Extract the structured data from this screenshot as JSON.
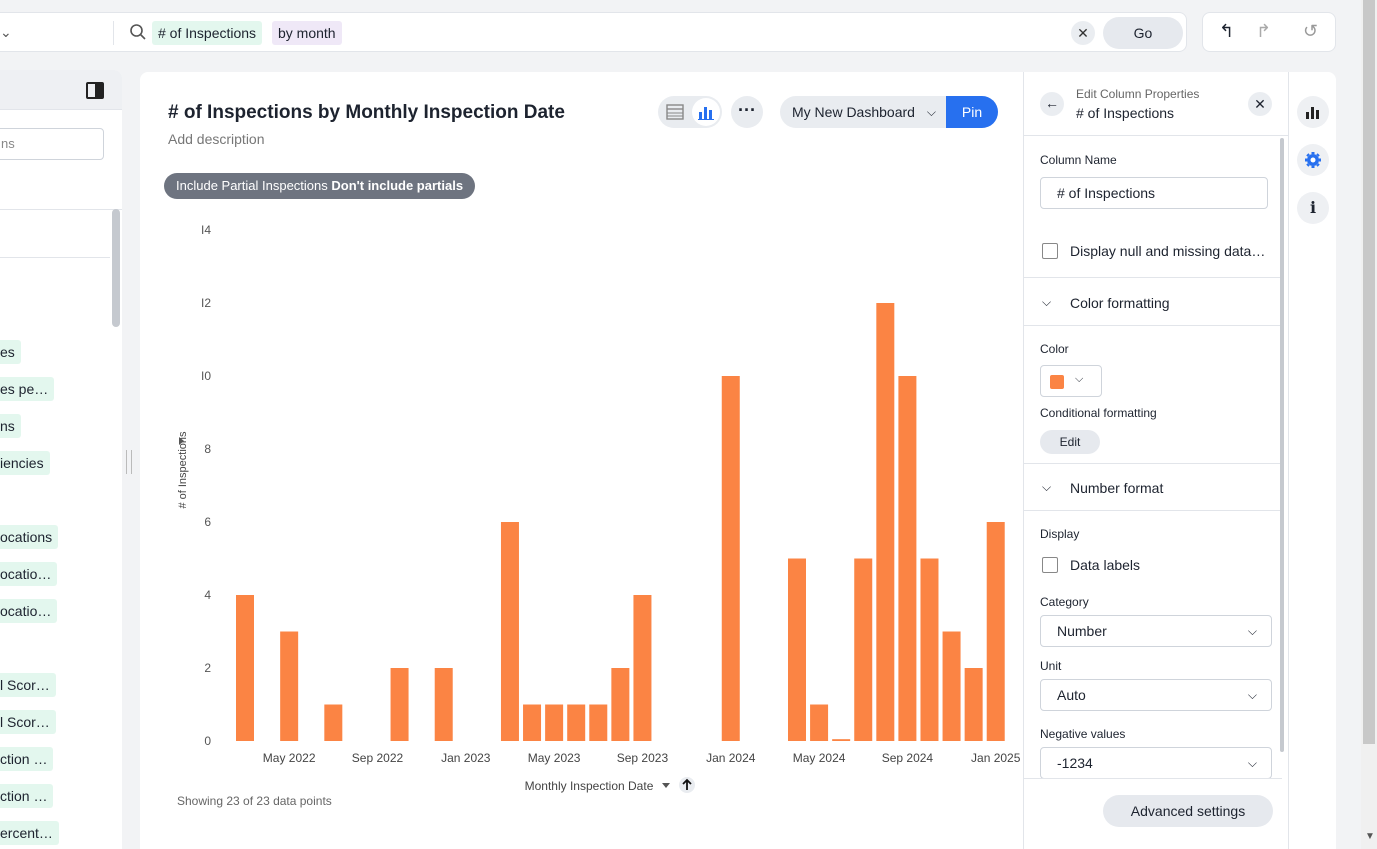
{
  "search": {
    "token1": "# of Inspections",
    "token2": "by month",
    "clear": "✕",
    "go": "Go"
  },
  "toolbar": {
    "undo": "↰",
    "redo": "↱",
    "reset": "↺"
  },
  "left_panel": {
    "search_placeholder": "ns",
    "items": [
      "es",
      "es pe…",
      "ns",
      "iencies",
      "ocations",
      "ocatio…",
      "ocatio…",
      "l Scor…",
      "l Scor…",
      "ction …",
      "ction …",
      "ercent…"
    ]
  },
  "answer": {
    "title": "# of Inspections by Monthly Inspection Date",
    "description": "Add description",
    "filter_label": "Include Partial Inspections",
    "filter_value": "Don't include partials",
    "more": "···",
    "dashboard": "My New Dashboard",
    "pin": "Pin",
    "footnote": "Showing 23 of 23 data points"
  },
  "chart_data": {
    "type": "bar",
    "xlabel": "Monthly Inspection Date",
    "ylabel": "# of Inspections",
    "ylim": [
      0,
      14
    ],
    "y_ticks": [
      "0",
      "2",
      "4",
      "6",
      "8",
      "I0",
      "I2",
      "I4"
    ],
    "x_tick_labels": [
      "May 2022",
      "Sep 2022",
      "Jan 2023",
      "May 2023",
      "Sep 2023",
      "Jan 2024",
      "May 2024",
      "Sep 2024",
      "Jan 2025"
    ],
    "bar_color": "#fb8444",
    "months": [
      "2022-03",
      "2022-05",
      "2022-07",
      "2022-10",
      "2022-12",
      "2023-03",
      "2023-04",
      "2023-05",
      "2023-06",
      "2023-07",
      "2023-08",
      "2023-09",
      "2024-01",
      "2024-04",
      "2024-05",
      "2024-06",
      "2024-07",
      "2024-08",
      "2024-09",
      "2024-10",
      "2024-11",
      "2024-12",
      "2025-01"
    ],
    "values": [
      4,
      3,
      1,
      2,
      2,
      6,
      1,
      1,
      1,
      1,
      2,
      4,
      10,
      5,
      1,
      0.05,
      5,
      12,
      10,
      5,
      3,
      2,
      6
    ]
  },
  "edit_panel": {
    "subtitle": "Edit Column Properties",
    "title": "# of Inspections",
    "back": "←",
    "close": "✕",
    "column_name_label": "Column Name",
    "column_name_value": "# of Inspections",
    "display_null": "Display null and missing data…",
    "color_formatting": "Color formatting",
    "color_label": "Color",
    "conditional_label": "Conditional formatting",
    "edit": "Edit",
    "number_format": "Number format",
    "display_label": "Display",
    "data_labels": "Data labels",
    "category_label": "Category",
    "category_value": "Number",
    "unit_label": "Unit",
    "unit_value": "Auto",
    "negative_label": "Negative values",
    "negative_value": "-1234",
    "advanced": "Advanced settings"
  },
  "rail": {
    "info": "i"
  }
}
